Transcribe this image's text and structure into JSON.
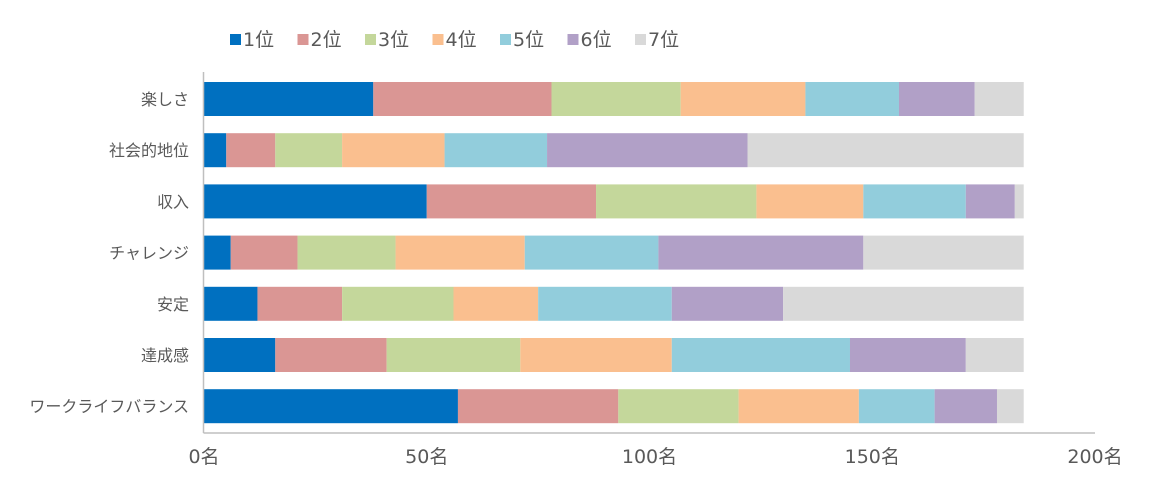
{
  "chart_data": {
    "type": "bar",
    "orientation": "horizontal",
    "stacked": true,
    "title": "",
    "xlabel": "",
    "ylabel": "",
    "xlim": [
      0,
      200
    ],
    "x_ticks": [
      0,
      50,
      100,
      150,
      200
    ],
    "x_tick_labels": [
      "0名",
      "50名",
      "100名",
      "150名",
      "200名"
    ],
    "legend_position": "top",
    "grid": false,
    "categories": [
      "楽しさ",
      "社会的地位",
      "収入",
      "チャレンジ",
      "安定",
      "達成感",
      "ワークライフバランス"
    ],
    "series": [
      {
        "name": "1位",
        "color": "#0070c0",
        "values": [
          38,
          5,
          50,
          6,
          12,
          16,
          57
        ]
      },
      {
        "name": "2位",
        "color": "#da9694",
        "values": [
          40,
          11,
          38,
          15,
          19,
          25,
          36
        ]
      },
      {
        "name": "3位",
        "color": "#c4d79b",
        "values": [
          29,
          15,
          36,
          22,
          25,
          30,
          27
        ]
      },
      {
        "name": "4位",
        "color": "#fabf8f",
        "values": [
          28,
          23,
          24,
          29,
          19,
          34,
          27
        ]
      },
      {
        "name": "5位",
        "color": "#92cddc",
        "values": [
          21,
          23,
          23,
          30,
          30,
          40,
          17
        ]
      },
      {
        "name": "6位",
        "color": "#b1a0c7",
        "values": [
          17,
          45,
          11,
          46,
          25,
          26,
          14
        ]
      },
      {
        "name": "7位",
        "color": "#d9d9d9",
        "values": [
          11,
          62,
          2,
          36,
          54,
          13,
          6
        ]
      }
    ]
  }
}
